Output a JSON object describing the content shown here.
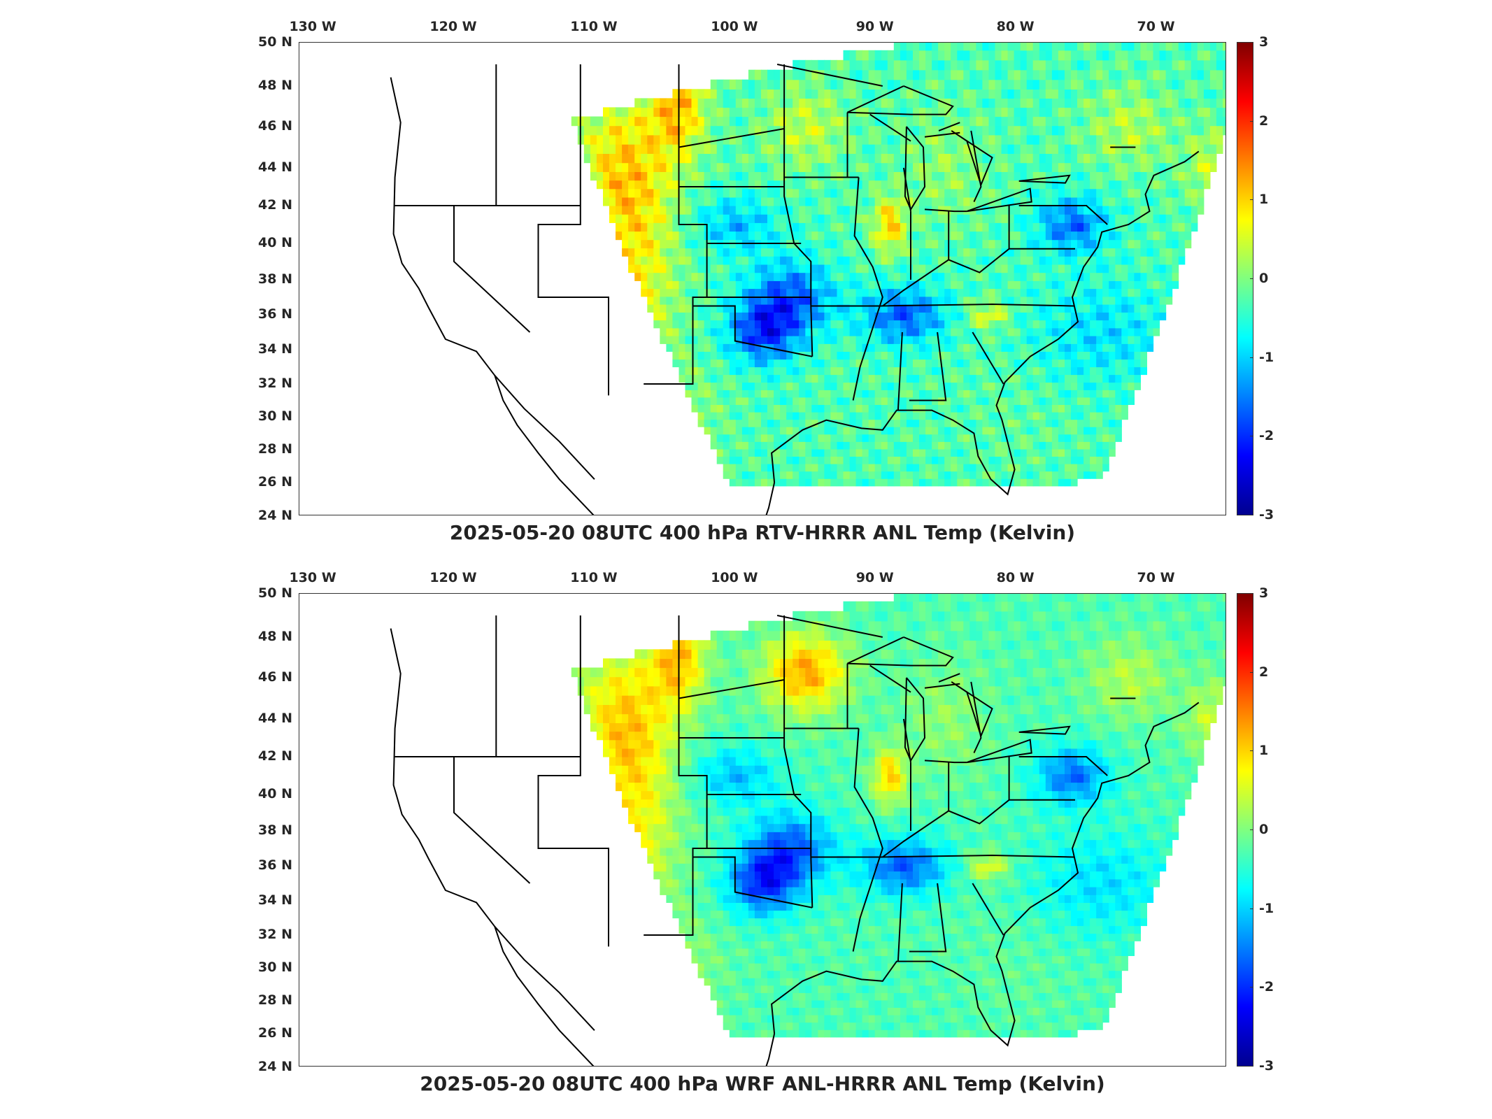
{
  "panels": [
    {
      "title": "2025-05-20 08UTC 400 hPa RTV-HRRR ANL Temp (Kelvin)",
      "variant": "rtv"
    },
    {
      "title": "2025-05-20 08UTC 400 hPa WRF ANL-HRRR ANL Temp (Kelvin)",
      "variant": "wrf"
    }
  ],
  "lon_ticks": [
    {
      "value": -130,
      "label": "130 W"
    },
    {
      "value": -120,
      "label": "120 W"
    },
    {
      "value": -110,
      "label": "110 W"
    },
    {
      "value": -100,
      "label": "100 W"
    },
    {
      "value": -90,
      "label": "90 W"
    },
    {
      "value": -80,
      "label": "80 W"
    },
    {
      "value": -70,
      "label": "70 W"
    }
  ],
  "lat_ticks": [
    {
      "value": 50,
      "label": "50 N"
    },
    {
      "value": 48,
      "label": "48 N"
    },
    {
      "value": 46,
      "label": "46 N"
    },
    {
      "value": 44,
      "label": "44 N"
    },
    {
      "value": 42,
      "label": "42 N"
    },
    {
      "value": 40,
      "label": "40 N"
    },
    {
      "value": 38,
      "label": "38 N"
    },
    {
      "value": 36,
      "label": "36 N"
    },
    {
      "value": 34,
      "label": "34 N"
    },
    {
      "value": 32,
      "label": "32 N"
    },
    {
      "value": 30,
      "label": "30 N"
    },
    {
      "value": 28,
      "label": "28 N"
    },
    {
      "value": 26,
      "label": "26 N"
    },
    {
      "value": 24,
      "label": "24 N"
    }
  ],
  "colorbar": {
    "min": -3,
    "max": 3,
    "ticks": [
      "3",
      "2",
      "1",
      "0",
      "-1",
      "-2",
      "-3"
    ],
    "colormap": "jet"
  },
  "map_extent": {
    "lon": [
      -131,
      -65
    ],
    "lat": [
      24,
      50
    ]
  }
}
